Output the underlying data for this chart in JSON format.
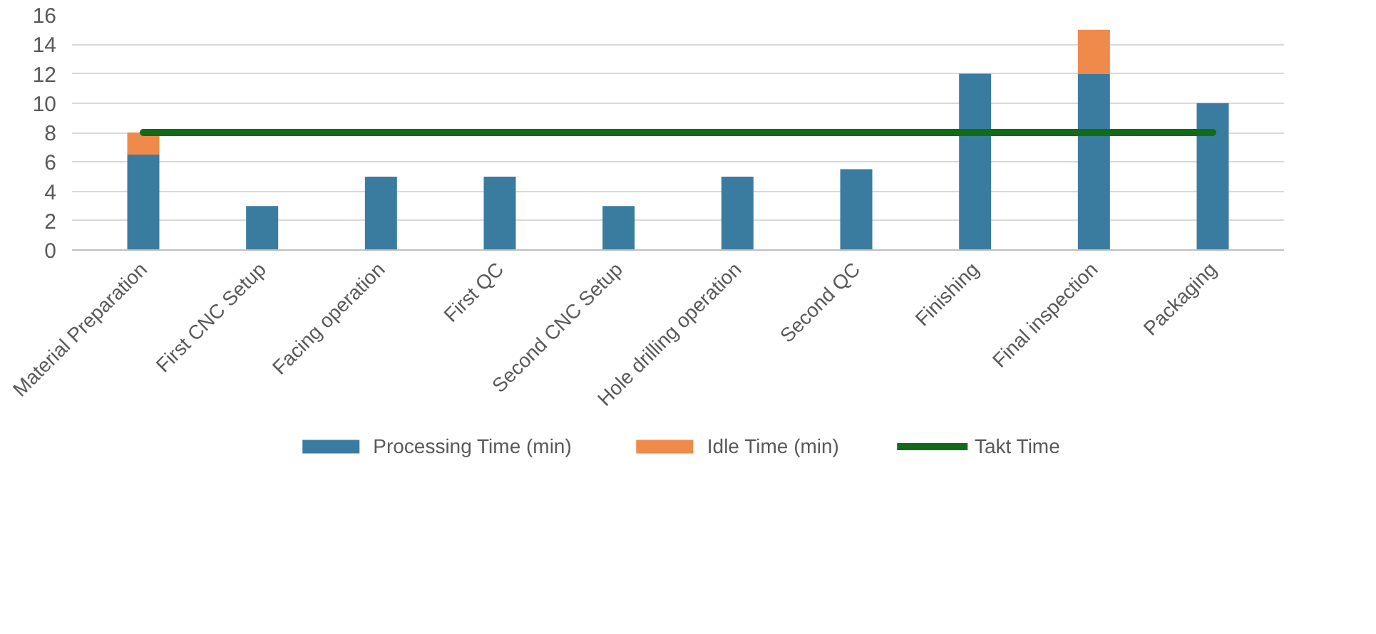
{
  "chart_data": {
    "type": "bar",
    "stacked": true,
    "categories": [
      "Material Preparation",
      "First CNC Setup",
      "Facing operation",
      "First QC",
      "Second CNC Setup",
      "Hole drilling operation",
      "Second QC",
      "Finishing",
      "Final inspection",
      "Packaging"
    ],
    "series": [
      {
        "name": "Processing Time (min)",
        "color": "#3a7ca0",
        "values": [
          6.5,
          3,
          5,
          5,
          3,
          5,
          5.5,
          12,
          12,
          10
        ]
      },
      {
        "name": "Idle Time (min)",
        "color": "#f08a4b",
        "values": [
          1.5,
          0,
          0,
          0,
          0,
          0,
          0,
          0,
          3,
          0
        ]
      },
      {
        "name": "Takt Time",
        "type": "line",
        "color": "#136b1a",
        "values": [
          8,
          8,
          8,
          8,
          8,
          8,
          8,
          8,
          8,
          8
        ]
      }
    ],
    "ylim": [
      0,
      16
    ],
    "yticks": [
      0,
      2,
      4,
      6,
      8,
      10,
      12,
      14,
      16
    ],
    "grid": "y",
    "legend": "bottom"
  }
}
